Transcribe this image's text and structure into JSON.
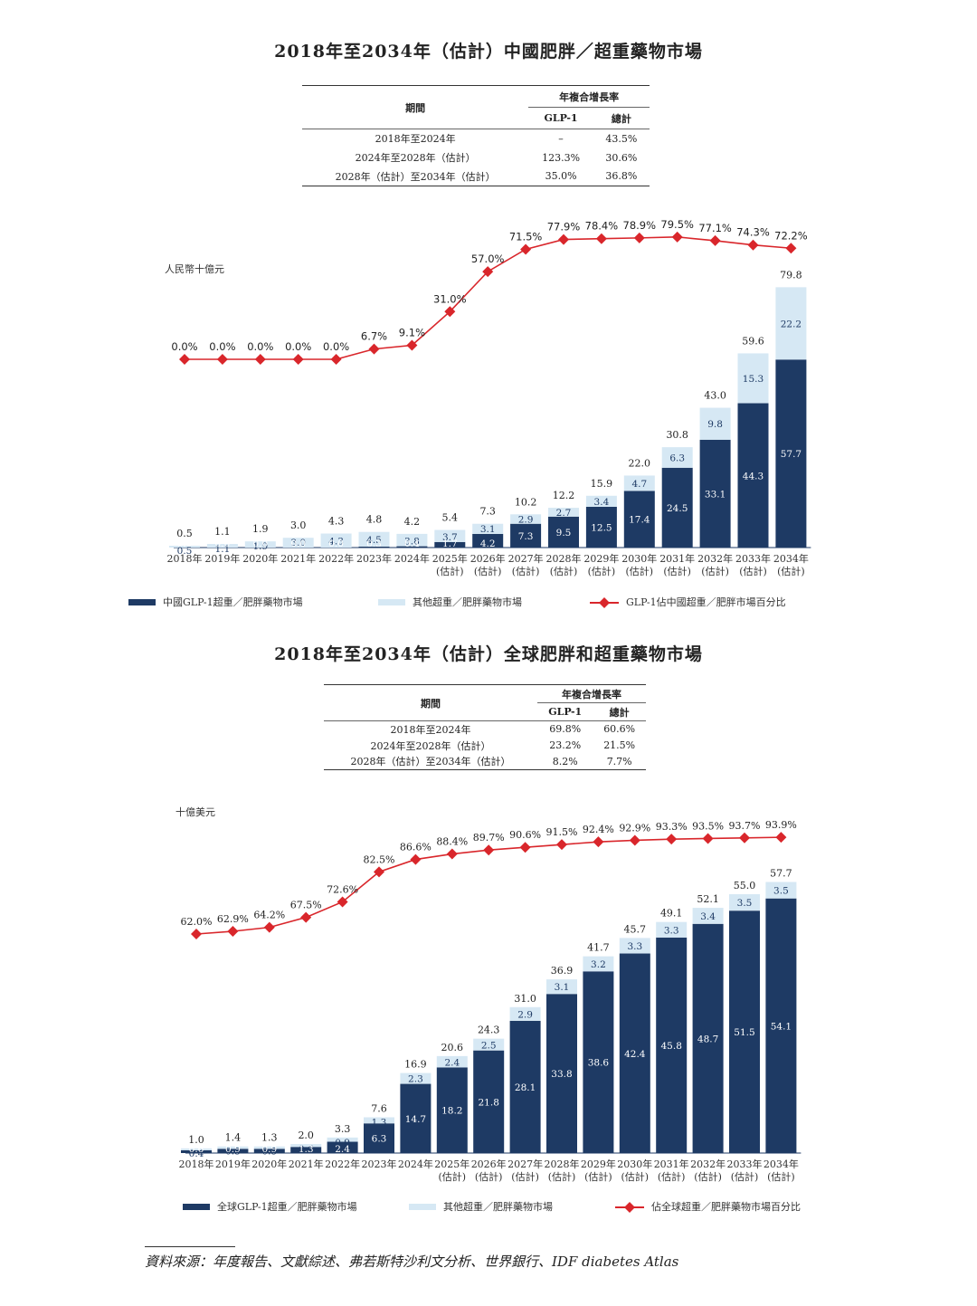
{
  "china": {
    "title": "2018年至2034年（估計）中國肥胖／超重藥物市場",
    "table": {
      "h_period": "期間",
      "h_cagr": "年複合增長率",
      "h_glp1": "GLP-1",
      "h_total": "總計",
      "rows": [
        {
          "period": "2018年至2024年",
          "glp1": "–",
          "total": "43.5%"
        },
        {
          "period": "2024年至2028年（估計）",
          "glp1": "123.3%",
          "total": "30.6%"
        },
        {
          "period": "2028年（估計）至2034年（估計）",
          "glp1": "35.0%",
          "total": "36.8%"
        }
      ]
    }
  },
  "global": {
    "title": "2018年至2034年（估計）全球肥胖和超重藥物市場",
    "table": {
      "h_period": "期間",
      "h_cagr": "年複合增長率",
      "h_glp1": "GLP-1",
      "h_total": "總計",
      "rows": [
        {
          "period": "2018年至2024年",
          "glp1": "69.8%",
          "total": "60.6%"
        },
        {
          "period": "2024年至2028年（估計）",
          "glp1": "23.2%",
          "total": "21.5%"
        },
        {
          "period": "2028年（估計）至2034年（估計）",
          "glp1": "8.2%",
          "total": "7.7%"
        }
      ]
    }
  },
  "source": "資料來源：年度報告、文獻綜述、弗若斯特沙利文分析、世界銀行、IDF diabetes Atlas",
  "chart_data": [
    {
      "type": "bar",
      "stacked": true,
      "ylabel": "人民幣十億元",
      "categories": [
        "2018年",
        "2019年",
        "2020年",
        "2021年",
        "2022年",
        "2023年",
        "2024年",
        "2025年",
        "2026年",
        "2027年",
        "2028年",
        "2029年",
        "2030年",
        "2031年",
        "2032年",
        "2033年",
        "2034年"
      ],
      "estimate_labels": [
        "",
        "",
        "",
        "",
        "",
        "",
        "",
        "(估計)",
        "(估計)",
        "(估計)",
        "(估計)",
        "(估計)",
        "(估計)",
        "(估計)",
        "(估計)",
        "(估計)",
        "(估計)"
      ],
      "series": [
        {
          "name": "中國GLP-1超重／肥胖藥物市場",
          "color": "#1e3a64",
          "values": [
            0.0,
            0.0,
            0.0,
            0.0,
            0.0,
            0.3,
            0.4,
            1.7,
            4.2,
            7.3,
            9.5,
            12.5,
            17.4,
            24.5,
            33.1,
            44.3,
            57.7
          ]
        },
        {
          "name": "其他超重／肥胖藥物市場",
          "color": "#d6e8f4",
          "values": [
            0.5,
            1.1,
            1.9,
            3.0,
            4.3,
            4.5,
            3.8,
            3.7,
            3.1,
            2.9,
            2.7,
            3.4,
            4.7,
            6.3,
            9.8,
            15.3,
            22.2
          ]
        }
      ],
      "totals": [
        0.5,
        1.1,
        1.9,
        3.0,
        4.3,
        4.8,
        4.2,
        5.4,
        7.3,
        10.2,
        12.2,
        15.9,
        22.0,
        30.8,
        43.0,
        59.6,
        79.8
      ],
      "line": {
        "name": "GLP-1佔中國超重／肥胖市場百分比",
        "color": "#d9262b",
        "values": [
          0.0,
          0.0,
          0.0,
          0.0,
          0.0,
          6.7,
          9.1,
          31.0,
          57.0,
          71.5,
          77.9,
          78.4,
          78.9,
          79.5,
          77.1,
          74.3,
          72.2
        ]
      }
    },
    {
      "type": "bar",
      "stacked": true,
      "ylabel": "十億美元",
      "categories": [
        "2018年",
        "2019年",
        "2020年",
        "2021年",
        "2022年",
        "2023年",
        "2024年",
        "2025年",
        "2026年",
        "2027年",
        "2028年",
        "2029年",
        "2030年",
        "2031年",
        "2032年",
        "2033年",
        "2034年"
      ],
      "estimate_labels": [
        "",
        "",
        "",
        "",
        "",
        "",
        "",
        "(估計)",
        "(估計)",
        "(估計)",
        "(估計)",
        "(估計)",
        "(估計)",
        "(估計)",
        "(估計)",
        "(估計)",
        "(估計)"
      ],
      "series": [
        {
          "name": "全球GLP-1超重／肥胖藥物市場",
          "color": "#1e3a64",
          "values": [
            0.6,
            0.9,
            0.9,
            1.3,
            2.4,
            6.3,
            14.7,
            18.2,
            21.8,
            28.1,
            33.8,
            38.6,
            42.4,
            45.8,
            48.7,
            51.5,
            54.1
          ]
        },
        {
          "name": "其他超重／肥胖藥物市場",
          "color": "#d6e8f4",
          "values": [
            0.4,
            0.5,
            0.5,
            0.6,
            0.9,
            1.3,
            2.3,
            2.4,
            2.5,
            2.9,
            3.1,
            3.2,
            3.3,
            3.3,
            3.4,
            3.5,
            3.5
          ]
        }
      ],
      "totals": [
        1.0,
        1.4,
        1.3,
        2.0,
        3.3,
        7.6,
        16.9,
        20.6,
        24.3,
        31.0,
        36.9,
        41.7,
        45.7,
        49.1,
        52.1,
        55.0,
        57.7
      ],
      "line": {
        "name": "佔全球超重／肥胖藥物市場百分比",
        "color": "#d9262b",
        "values": [
          62.0,
          62.9,
          64.2,
          67.5,
          72.6,
          82.5,
          86.6,
          88.4,
          89.7,
          90.6,
          91.5,
          92.4,
          92.9,
          93.3,
          93.5,
          93.7,
          93.9
        ]
      }
    }
  ]
}
